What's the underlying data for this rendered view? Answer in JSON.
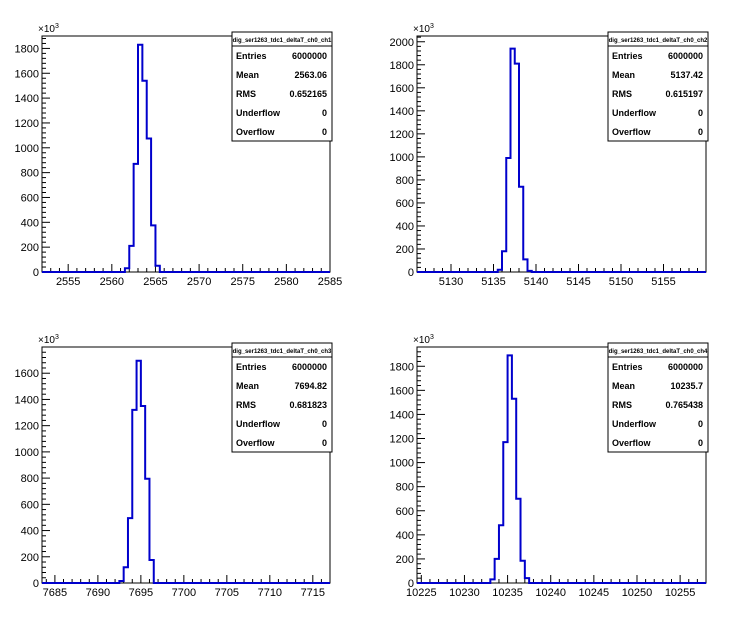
{
  "colors": {
    "histogram": "#0000cc",
    "frame": "#000000",
    "background": "#ffffff"
  },
  "stats_labels": {
    "entries": "Entries",
    "mean": "Mean",
    "rms": "RMS",
    "underflow": "Underflow",
    "overflow": "Overflow"
  },
  "y_exponent": {
    "base": "×10",
    "power": "3"
  },
  "chart_data": [
    {
      "type": "bar",
      "name": "dig_ser1263_tdc1_deltaT_ch0_ch1",
      "stats": {
        "entries": "6000000",
        "mean": "2563.06",
        "rms": "0.652165",
        "underflow": "0",
        "overflow": "0"
      },
      "xlim": [
        2552,
        2585
      ],
      "ylim": [
        0,
        1900
      ],
      "xticks": [
        2555,
        2560,
        2565,
        2570,
        2575,
        2580,
        2585
      ],
      "xtick_labels": [
        "2555",
        "2560",
        "2565",
        "2570",
        "2575",
        "2580",
        "2585"
      ],
      "yticks": [
        0,
        200,
        400,
        600,
        800,
        1000,
        1200,
        1400,
        1600,
        1800
      ],
      "ytick_labels": [
        "0",
        "200",
        "400",
        "600",
        "800",
        "1000",
        "1200",
        "1400",
        "1600",
        "1800"
      ],
      "bin_edges": [
        2561.5,
        2562.0,
        2562.5,
        2563.0,
        2563.5,
        2564.0,
        2564.5,
        2565.0,
        2565.5
      ],
      "values": [
        30,
        210,
        870,
        1830,
        1540,
        1075,
        375,
        50
      ]
    },
    {
      "type": "bar",
      "name": "dig_ser1263_tdc1_deltaT_ch0_ch2",
      "stats": {
        "entries": "6000000",
        "mean": "5137.42",
        "rms": "0.615197",
        "underflow": "0",
        "overflow": "0"
      },
      "xlim": [
        5126,
        5160
      ],
      "ylim": [
        0,
        2050
      ],
      "xticks": [
        5130,
        5135,
        5140,
        5145,
        5150,
        5155
      ],
      "xtick_labels": [
        "5130",
        "5135",
        "5140",
        "5145",
        "5150",
        "5155"
      ],
      "yticks": [
        0,
        200,
        400,
        600,
        800,
        1000,
        1200,
        1400,
        1600,
        1800,
        2000
      ],
      "ytick_labels": [
        "0",
        "200",
        "400",
        "600",
        "800",
        "1000",
        "1200",
        "1400",
        "1600",
        "1800",
        "2000"
      ],
      "bin_edges": [
        5135.5,
        5136.0,
        5136.5,
        5137.0,
        5137.5,
        5138.0,
        5138.5,
        5139.0,
        5139.5
      ],
      "values": [
        20,
        180,
        990,
        1940,
        1810,
        740,
        110,
        10
      ]
    },
    {
      "type": "bar",
      "name": "dig_ser1263_tdc1_deltaT_ch0_ch3",
      "stats": {
        "entries": "6000000",
        "mean": "7694.82",
        "rms": "0.681823",
        "underflow": "0",
        "overflow": "0"
      },
      "xlim": [
        7683.5,
        7717
      ],
      "ylim": [
        0,
        1800
      ],
      "xticks": [
        7685,
        7690,
        7695,
        7700,
        7705,
        7710,
        7715
      ],
      "xtick_labels": [
        "7685",
        "7690",
        "7695",
        "7700",
        "7705",
        "7710",
        "7715"
      ],
      "yticks": [
        0,
        200,
        400,
        600,
        800,
        1000,
        1200,
        1400,
        1600
      ],
      "ytick_labels": [
        "0",
        "200",
        "400",
        "600",
        "800",
        "1000",
        "1200",
        "1400",
        "1600"
      ],
      "bin_edges": [
        7692.5,
        7693.0,
        7693.5,
        7694.0,
        7694.5,
        7695.0,
        7695.5,
        7696.0,
        7696.5
      ],
      "values": [
        15,
        120,
        495,
        1320,
        1695,
        1350,
        795,
        175
      ]
    },
    {
      "type": "bar",
      "name": "dig_ser1263_tdc1_deltaT_ch0_ch4",
      "stats": {
        "entries": "6000000",
        "mean": "10235.7",
        "rms": "0.765438",
        "underflow": "0",
        "overflow": "0"
      },
      "xlim": [
        10224.5,
        10258
      ],
      "ylim": [
        0,
        1960
      ],
      "xticks": [
        10225,
        10230,
        10235,
        10240,
        10245,
        10250,
        10255
      ],
      "xtick_labels": [
        "10225",
        "10230",
        "10235",
        "10240",
        "10245",
        "10250",
        "10255"
      ],
      "yticks": [
        0,
        200,
        400,
        600,
        800,
        1000,
        1200,
        1400,
        1600,
        1800
      ],
      "ytick_labels": [
        "0",
        "200",
        "400",
        "600",
        "800",
        "1000",
        "1200",
        "1400",
        "1600",
        "1800"
      ],
      "bin_edges": [
        10233.0,
        10233.5,
        10234.0,
        10234.5,
        10235.0,
        10235.5,
        10236.0,
        10236.5,
        10237.0,
        10237.5
      ],
      "values": [
        30,
        200,
        480,
        1170,
        1890,
        1530,
        700,
        185,
        40
      ]
    }
  ]
}
